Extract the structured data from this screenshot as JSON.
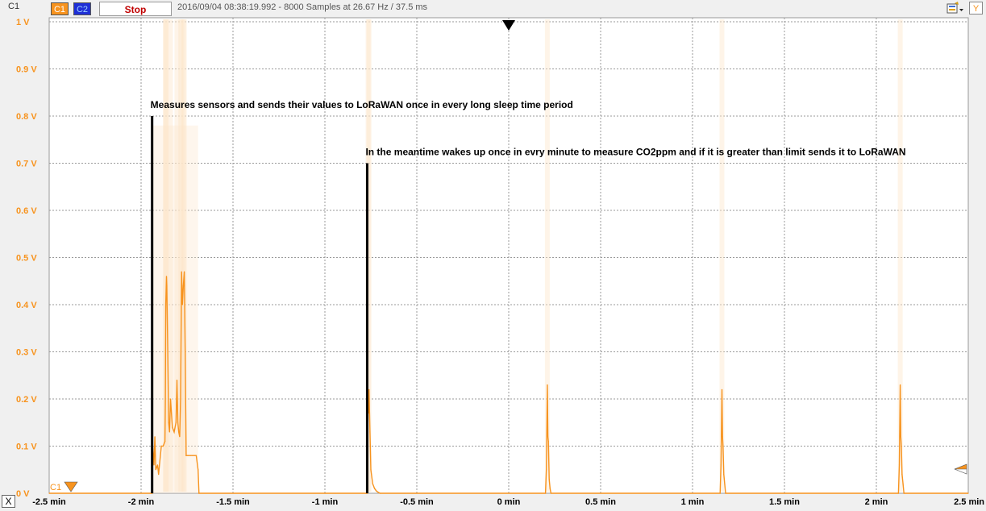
{
  "toolbar": {
    "channel_label": "C1",
    "c1_button": "C1",
    "c2_button": "C2",
    "stop_label": "Stop",
    "info": "2016/09/04  08:38:19.992 - 8000 Samples at 26.67 Hz / 37.5 ms",
    "y_button": "Y",
    "x_button": "X",
    "tool_icon": "scope-settings-icon"
  },
  "colors": {
    "trace": "#f7931e",
    "trace_faint": "#fde6cc",
    "grid": "#9a9a9a",
    "plot_bg": "#ffffff",
    "c1_button": "#f7931e",
    "c2_button": "#1f2fd6",
    "stop_text": "#c00000"
  },
  "chart_data": {
    "type": "line",
    "xlabel": "",
    "ylabel": "",
    "xlim": [
      -2.5,
      2.5
    ],
    "ylim": [
      0,
      1
    ],
    "grid": true,
    "x_ticks": [
      "-2.5 min",
      "-2 min",
      "-1.5 min",
      "-1 min",
      "-0.5 min",
      "0 min",
      "0.5 min",
      "1 min",
      "1.5 min",
      "2 min",
      "2.5 min"
    ],
    "y_ticks": [
      "1 V",
      "0.9 V",
      "0.8 V",
      "0.7 V",
      "0.6 V",
      "0.5 V",
      "0.4 V",
      "0.3 V",
      "0.2 V",
      "0.1 V",
      "0 V"
    ],
    "trigger_x": 0,
    "channel_marker": "C1",
    "series": [
      {
        "name": "C1",
        "x": [
          -2.5,
          -1.94,
          -1.937,
          -1.93,
          -1.925,
          -1.92,
          -1.91,
          -1.905,
          -1.9,
          -1.89,
          -1.88,
          -1.87,
          -1.868,
          -1.866,
          -1.862,
          -1.86,
          -1.855,
          -1.85,
          -1.845,
          -1.84,
          -1.83,
          -1.82,
          -1.81,
          -1.805,
          -1.8,
          -1.795,
          -1.79,
          -1.785,
          -1.78,
          -1.775,
          -1.77,
          -1.765,
          -1.76,
          -1.755,
          -1.75,
          -1.745,
          -1.74,
          -1.73,
          -1.72,
          -1.71,
          -1.7,
          -1.69,
          -1.685,
          -0.77,
          -0.765,
          -0.762,
          -0.76,
          -0.755,
          -0.75,
          -0.74,
          -0.73,
          -0.72,
          -0.71,
          -0.7,
          0.2,
          0.205,
          0.21,
          0.213,
          0.216,
          0.22,
          0.225,
          0.23,
          1.15,
          1.155,
          1.16,
          1.163,
          1.166,
          1.17,
          1.175,
          1.18,
          2.12,
          2.125,
          2.13,
          2.133,
          2.136,
          2.14,
          2.145,
          2.15,
          2.5
        ],
        "values": [
          0,
          0,
          0.1,
          0.06,
          0.12,
          0.05,
          0.06,
          0.04,
          0.06,
          0.1,
          0.1,
          0.11,
          0.2,
          0.4,
          0.46,
          0.44,
          0.3,
          0.15,
          0.13,
          0.2,
          0.14,
          0.13,
          0.15,
          0.24,
          0.15,
          0.13,
          0.12,
          0.2,
          0.47,
          0.4,
          0.44,
          0.47,
          0.3,
          0.08,
          0.08,
          0.08,
          0.08,
          0.08,
          0.08,
          0.08,
          0.08,
          0.05,
          0,
          0,
          0.2,
          0.17,
          0.22,
          0.13,
          0.05,
          0.02,
          0.01,
          0.005,
          0.002,
          0,
          0,
          0.05,
          0.23,
          0.12,
          0.11,
          0.03,
          0.01,
          0,
          0,
          0.06,
          0.22,
          0.12,
          0.1,
          0.04,
          0.02,
          0,
          0,
          0.06,
          0.23,
          0.12,
          0.1,
          0.04,
          0.02,
          0,
          0
        ]
      }
    ],
    "annotations": [
      {
        "text": "Measures sensors and sends their values to LoRaWAN once in every long sleep time period",
        "x": -1.94,
        "y": 0.8
      },
      {
        "text": "In the meantime wakes up once in evry minute to measure CO2ppm and if it is greater than limit sends it to LoRaWAN",
        "x": -0.77,
        "y": 0.7
      }
    ]
  }
}
